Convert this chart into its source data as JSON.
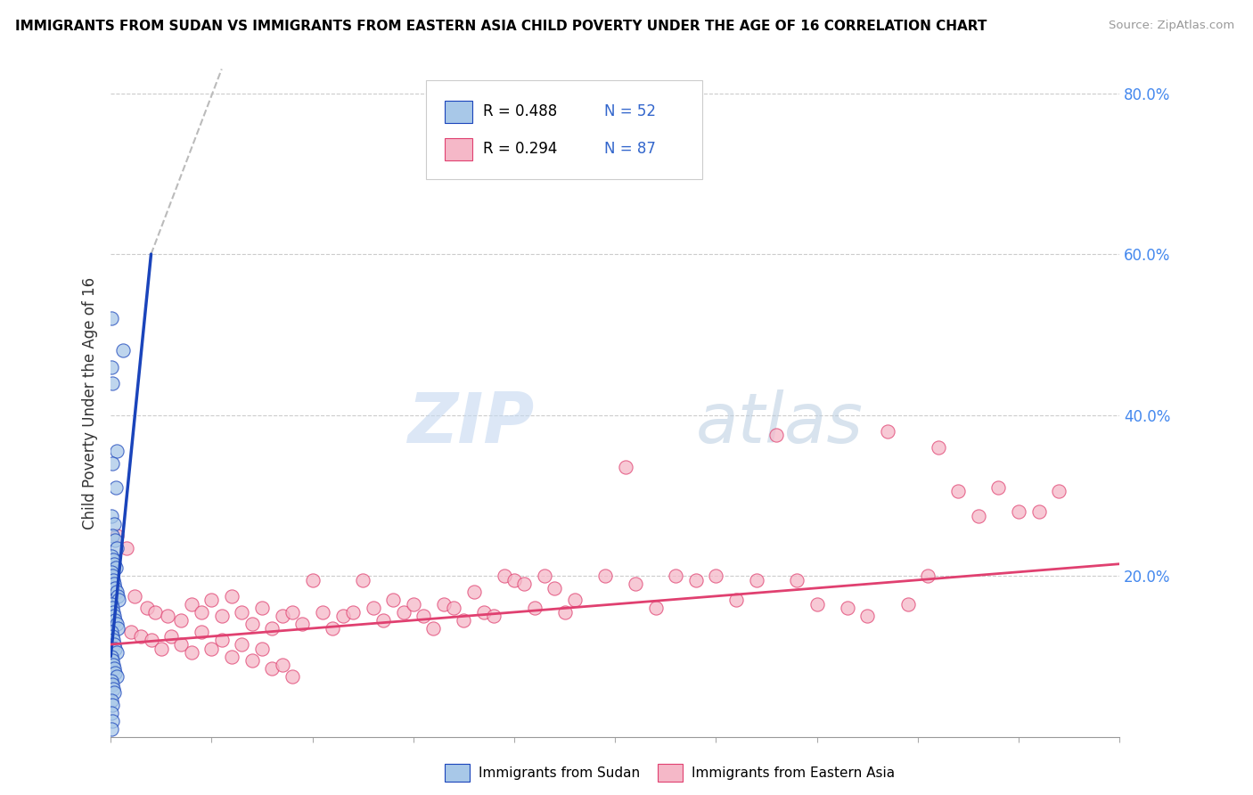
{
  "title": "IMMIGRANTS FROM SUDAN VS IMMIGRANTS FROM EASTERN ASIA CHILD POVERTY UNDER THE AGE OF 16 CORRELATION CHART",
  "source": "Source: ZipAtlas.com",
  "ylabel": "Child Poverty Under the Age of 16",
  "xmin": 0.0,
  "xmax": 50.0,
  "ymin": 0.0,
  "ymax": 83.0,
  "sudan_color": "#a8c8e8",
  "eastern_asia_color": "#f5b8c8",
  "sudan_line_color": "#1a44bb",
  "eastern_asia_line_color": "#e04070",
  "sudan_scatter": [
    [
      0.05,
      52.0
    ],
    [
      0.6,
      48.0
    ],
    [
      0.05,
      46.0
    ],
    [
      0.1,
      44.0
    ],
    [
      0.3,
      35.5
    ],
    [
      0.08,
      34.0
    ],
    [
      0.25,
      31.0
    ],
    [
      0.05,
      27.5
    ],
    [
      0.15,
      26.5
    ],
    [
      0.1,
      25.0
    ],
    [
      0.2,
      24.5
    ],
    [
      0.3,
      23.5
    ],
    [
      0.05,
      22.5
    ],
    [
      0.12,
      22.0
    ],
    [
      0.18,
      21.5
    ],
    [
      0.25,
      21.0
    ],
    [
      0.05,
      20.5
    ],
    [
      0.08,
      20.0
    ],
    [
      0.12,
      19.5
    ],
    [
      0.18,
      19.0
    ],
    [
      0.22,
      18.5
    ],
    [
      0.28,
      18.0
    ],
    [
      0.35,
      17.5
    ],
    [
      0.4,
      17.0
    ],
    [
      0.05,
      16.5
    ],
    [
      0.08,
      16.0
    ],
    [
      0.12,
      15.5
    ],
    [
      0.18,
      15.0
    ],
    [
      0.22,
      14.5
    ],
    [
      0.28,
      14.0
    ],
    [
      0.35,
      13.5
    ],
    [
      0.05,
      13.0
    ],
    [
      0.08,
      12.5
    ],
    [
      0.12,
      12.0
    ],
    [
      0.18,
      11.5
    ],
    [
      0.22,
      11.0
    ],
    [
      0.28,
      10.5
    ],
    [
      0.05,
      10.0
    ],
    [
      0.08,
      9.5
    ],
    [
      0.12,
      9.0
    ],
    [
      0.18,
      8.5
    ],
    [
      0.22,
      8.0
    ],
    [
      0.28,
      7.5
    ],
    [
      0.05,
      7.0
    ],
    [
      0.08,
      6.5
    ],
    [
      0.12,
      6.0
    ],
    [
      0.18,
      5.5
    ],
    [
      0.05,
      4.5
    ],
    [
      0.08,
      4.0
    ],
    [
      0.05,
      3.0
    ],
    [
      0.08,
      2.0
    ],
    [
      0.05,
      1.0
    ]
  ],
  "eastern_asia_scatter": [
    [
      0.3,
      25.0
    ],
    [
      0.8,
      23.5
    ],
    [
      1.2,
      17.5
    ],
    [
      1.8,
      16.0
    ],
    [
      2.2,
      15.5
    ],
    [
      2.8,
      15.0
    ],
    [
      3.5,
      14.5
    ],
    [
      4.0,
      16.5
    ],
    [
      4.5,
      15.5
    ],
    [
      5.0,
      17.0
    ],
    [
      5.5,
      15.0
    ],
    [
      6.0,
      17.5
    ],
    [
      6.5,
      15.5
    ],
    [
      7.0,
      14.0
    ],
    [
      7.5,
      16.0
    ],
    [
      8.0,
      13.5
    ],
    [
      8.5,
      15.0
    ],
    [
      9.0,
      15.5
    ],
    [
      9.5,
      14.0
    ],
    [
      10.0,
      19.5
    ],
    [
      10.5,
      15.5
    ],
    [
      11.0,
      13.5
    ],
    [
      11.5,
      15.0
    ],
    [
      12.0,
      15.5
    ],
    [
      12.5,
      19.5
    ],
    [
      13.0,
      16.0
    ],
    [
      13.5,
      14.5
    ],
    [
      14.0,
      17.0
    ],
    [
      14.5,
      15.5
    ],
    [
      15.0,
      16.5
    ],
    [
      15.5,
      15.0
    ],
    [
      16.0,
      13.5
    ],
    [
      16.5,
      16.5
    ],
    [
      17.0,
      16.0
    ],
    [
      17.5,
      14.5
    ],
    [
      18.0,
      18.0
    ],
    [
      18.5,
      15.5
    ],
    [
      19.0,
      15.0
    ],
    [
      19.5,
      20.0
    ],
    [
      20.0,
      19.5
    ],
    [
      20.5,
      19.0
    ],
    [
      21.0,
      16.0
    ],
    [
      21.5,
      20.0
    ],
    [
      22.0,
      18.5
    ],
    [
      22.5,
      15.5
    ],
    [
      23.0,
      17.0
    ],
    [
      24.5,
      20.0
    ],
    [
      25.5,
      33.5
    ],
    [
      26.0,
      19.0
    ],
    [
      27.0,
      16.0
    ],
    [
      28.0,
      20.0
    ],
    [
      29.0,
      19.5
    ],
    [
      30.0,
      20.0
    ],
    [
      31.0,
      17.0
    ],
    [
      32.0,
      19.5
    ],
    [
      33.0,
      37.5
    ],
    [
      34.0,
      19.5
    ],
    [
      35.0,
      16.5
    ],
    [
      36.5,
      16.0
    ],
    [
      37.5,
      15.0
    ],
    [
      38.5,
      38.0
    ],
    [
      39.5,
      16.5
    ],
    [
      40.5,
      20.0
    ],
    [
      41.0,
      36.0
    ],
    [
      42.0,
      30.5
    ],
    [
      43.0,
      27.5
    ],
    [
      44.0,
      31.0
    ],
    [
      45.0,
      28.0
    ],
    [
      46.0,
      28.0
    ],
    [
      47.0,
      30.5
    ],
    [
      1.0,
      13.0
    ],
    [
      1.5,
      12.5
    ],
    [
      2.0,
      12.0
    ],
    [
      2.5,
      11.0
    ],
    [
      3.0,
      12.5
    ],
    [
      3.5,
      11.5
    ],
    [
      4.0,
      10.5
    ],
    [
      4.5,
      13.0
    ],
    [
      5.0,
      11.0
    ],
    [
      5.5,
      12.0
    ],
    [
      6.0,
      10.0
    ],
    [
      6.5,
      11.5
    ],
    [
      7.0,
      9.5
    ],
    [
      7.5,
      11.0
    ],
    [
      8.0,
      8.5
    ],
    [
      8.5,
      9.0
    ],
    [
      9.0,
      7.5
    ]
  ],
  "sudan_line": [
    [
      0.0,
      10.0
    ],
    [
      2.0,
      60.0
    ]
  ],
  "sudan_dashed_line": [
    [
      2.0,
      60.0
    ],
    [
      5.5,
      83.0
    ]
  ],
  "eastern_asia_line": [
    [
      0.0,
      11.5
    ],
    [
      50.0,
      21.5
    ]
  ],
  "watermark_zip": "ZIP",
  "watermark_atlas": "atlas",
  "legend_sudan_R": "R = 0.488",
  "legend_sudan_N": "N = 52",
  "legend_eastern_R": "R = 0.294",
  "legend_eastern_N": "N = 87",
  "legend_bottom_sudan": "Immigrants from Sudan",
  "legend_bottom_eastern": "Immigrants from Eastern Asia"
}
